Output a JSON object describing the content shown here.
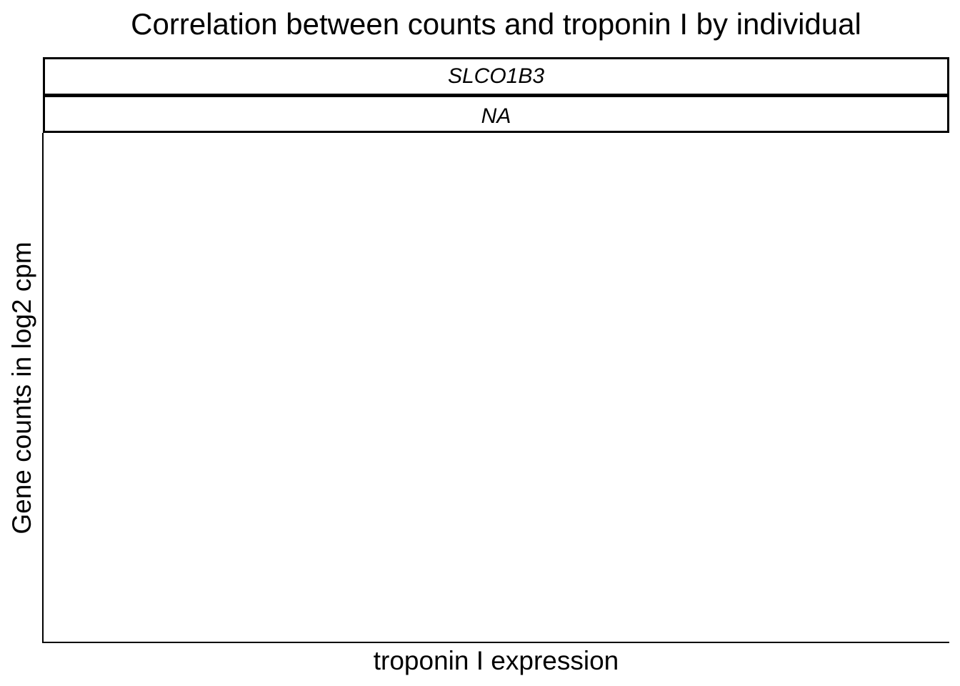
{
  "chart_data": {
    "type": "scatter",
    "title": "Correlation between counts and troponin I by individual",
    "facet_labels": [
      "SLCO1B3",
      "NA"
    ],
    "xlabel": "troponin I expression",
    "ylabel": "Gene counts in log2 cpm",
    "series": [],
    "grid": false,
    "legend": "none"
  }
}
